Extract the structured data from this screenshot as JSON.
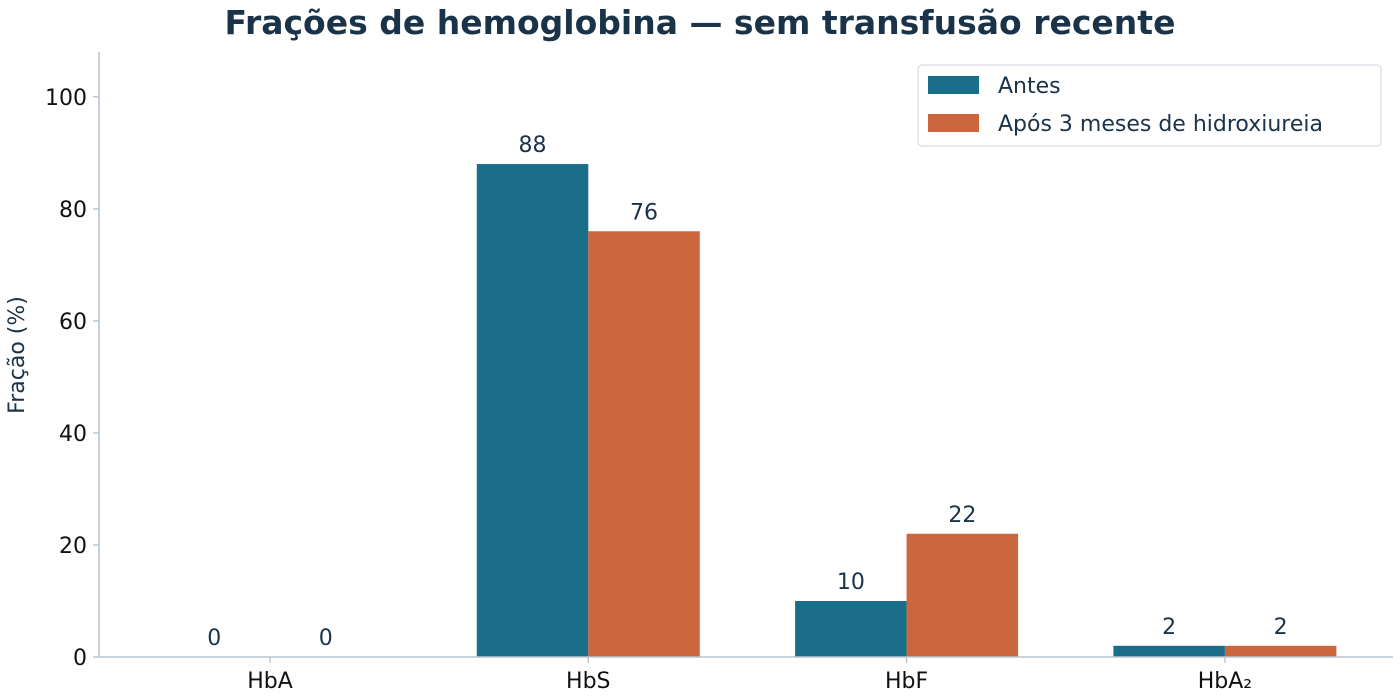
{
  "chart_data": {
    "type": "bar",
    "title": "Frações de hemoglobina — sem transfusão recente",
    "xlabel": "",
    "ylabel": "Fração (%)",
    "ylim": [
      0,
      108
    ],
    "yticks": [
      0,
      20,
      40,
      60,
      80,
      100
    ],
    "categories": [
      "HbA",
      "HbS",
      "HbF",
      "HbA₂"
    ],
    "series": [
      {
        "name": "Antes",
        "values": [
          0,
          88,
          10,
          2
        ],
        "color": "#1a6e8a"
      },
      {
        "name": "Após 3 meses de hidroxiureia",
        "values": [
          0,
          76,
          22,
          2
        ],
        "color": "#cc673d"
      }
    ],
    "data_labels": true,
    "grid": false,
    "legend_position": "top-right"
  }
}
